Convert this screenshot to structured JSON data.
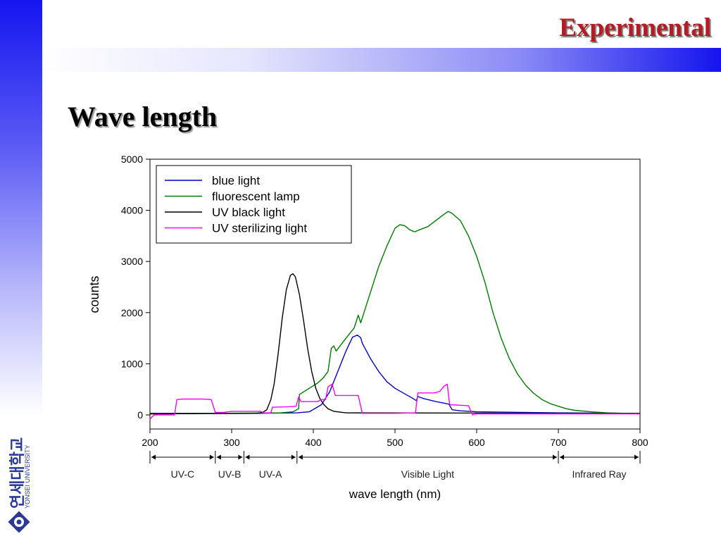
{
  "header": {
    "title": "Experimental"
  },
  "slide": {
    "title": "Wave length"
  },
  "logo": {
    "korean": "연세대학교",
    "english": "YONSEI UNIVERSITY"
  },
  "colors": {
    "accent_red": "#b31c22",
    "brand_blue": "#1414ee"
  },
  "chart_data": {
    "type": "line",
    "xlabel": "wave length (nm)",
    "ylabel": "counts",
    "xlim": [
      200,
      800
    ],
    "ylim": [
      -300,
      5000
    ],
    "xticks": [
      200,
      300,
      400,
      500,
      600,
      700,
      800
    ],
    "yticks": [
      0,
      1000,
      2000,
      3000,
      4000,
      5000
    ],
    "legend_position": "top-left",
    "grid": false,
    "series": [
      {
        "name": "blue light",
        "color": "#0000cc",
        "points": [
          [
            200,
            30
          ],
          [
            330,
            30
          ],
          [
            380,
            40
          ],
          [
            395,
            60
          ],
          [
            410,
            200
          ],
          [
            420,
            450
          ],
          [
            430,
            850
          ],
          [
            440,
            1250
          ],
          [
            448,
            1520
          ],
          [
            454,
            1560
          ],
          [
            458,
            1510
          ],
          [
            460,
            1400
          ],
          [
            470,
            1100
          ],
          [
            480,
            850
          ],
          [
            490,
            650
          ],
          [
            500,
            520
          ],
          [
            510,
            430
          ],
          [
            520,
            340
          ],
          [
            526,
            280
          ],
          [
            528,
            360
          ],
          [
            535,
            320
          ],
          [
            550,
            260
          ],
          [
            560,
            230
          ],
          [
            566,
            210
          ],
          [
            570,
            100
          ],
          [
            580,
            80
          ],
          [
            600,
            60
          ],
          [
            700,
            40
          ],
          [
            800,
            30
          ]
        ]
      },
      {
        "name": "fluorescent lamp",
        "color": "#007a00",
        "points": [
          [
            200,
            20
          ],
          [
            360,
            40
          ],
          [
            375,
            60
          ],
          [
            382,
            120
          ],
          [
            383,
            400
          ],
          [
            386,
            430
          ],
          [
            395,
            520
          ],
          [
            405,
            620
          ],
          [
            412,
            720
          ],
          [
            418,
            850
          ],
          [
            422,
            1300
          ],
          [
            425,
            1350
          ],
          [
            428,
            1250
          ],
          [
            440,
            1500
          ],
          [
            450,
            1700
          ],
          [
            455,
            1950
          ],
          [
            458,
            1800
          ],
          [
            470,
            2400
          ],
          [
            480,
            2900
          ],
          [
            490,
            3300
          ],
          [
            500,
            3650
          ],
          [
            506,
            3720
          ],
          [
            512,
            3700
          ],
          [
            518,
            3620
          ],
          [
            524,
            3580
          ],
          [
            530,
            3620
          ],
          [
            540,
            3680
          ],
          [
            550,
            3800
          ],
          [
            558,
            3900
          ],
          [
            565,
            3980
          ],
          [
            570,
            3940
          ],
          [
            580,
            3800
          ],
          [
            590,
            3500
          ],
          [
            600,
            3100
          ],
          [
            610,
            2600
          ],
          [
            620,
            2000
          ],
          [
            630,
            1500
          ],
          [
            640,
            1100
          ],
          [
            650,
            800
          ],
          [
            660,
            580
          ],
          [
            670,
            420
          ],
          [
            680,
            300
          ],
          [
            690,
            220
          ],
          [
            700,
            170
          ],
          [
            710,
            120
          ],
          [
            720,
            90
          ],
          [
            740,
            60
          ],
          [
            760,
            40
          ],
          [
            800,
            20
          ]
        ]
      },
      {
        "name": "UV black light",
        "color": "#000000",
        "points": [
          [
            200,
            20
          ],
          [
            330,
            30
          ],
          [
            338,
            50
          ],
          [
            343,
            100
          ],
          [
            348,
            300
          ],
          [
            352,
            600
          ],
          [
            357,
            1200
          ],
          [
            362,
            1900
          ],
          [
            367,
            2450
          ],
          [
            372,
            2730
          ],
          [
            375,
            2760
          ],
          [
            378,
            2700
          ],
          [
            383,
            2350
          ],
          [
            388,
            1850
          ],
          [
            393,
            1300
          ],
          [
            398,
            850
          ],
          [
            403,
            520
          ],
          [
            408,
            320
          ],
          [
            413,
            200
          ],
          [
            418,
            120
          ],
          [
            425,
            70
          ],
          [
            440,
            40
          ],
          [
            800,
            30
          ]
        ]
      },
      {
        "name": "UV sterilizing light",
        "color": "#ff00ff",
        "points": [
          [
            200,
            -80
          ],
          [
            205,
            0
          ],
          [
            230,
            0
          ],
          [
            233,
            300
          ],
          [
            240,
            310
          ],
          [
            265,
            310
          ],
          [
            275,
            300
          ],
          [
            280,
            50
          ],
          [
            290,
            50
          ],
          [
            300,
            70
          ],
          [
            335,
            70
          ],
          [
            340,
            40
          ],
          [
            348,
            40
          ],
          [
            350,
            150
          ],
          [
            370,
            160
          ],
          [
            379,
            170
          ],
          [
            382,
            350
          ],
          [
            385,
            260
          ],
          [
            405,
            260
          ],
          [
            410,
            300
          ],
          [
            415,
            300
          ],
          [
            418,
            550
          ],
          [
            423,
            600
          ],
          [
            427,
            380
          ],
          [
            455,
            380
          ],
          [
            460,
            30
          ],
          [
            500,
            30
          ],
          [
            525,
            40
          ],
          [
            528,
            430
          ],
          [
            548,
            430
          ],
          [
            555,
            460
          ],
          [
            560,
            560
          ],
          [
            564,
            600
          ],
          [
            567,
            200
          ],
          [
            590,
            180
          ],
          [
            595,
            0
          ],
          [
            600,
            20
          ],
          [
            800,
            20
          ]
        ]
      }
    ],
    "regions": [
      {
        "label": "UV-C",
        "x": [
          200,
          280
        ]
      },
      {
        "label": "UV-B",
        "x": [
          280,
          315
        ]
      },
      {
        "label": "UV-A",
        "x": [
          315,
          380
        ]
      },
      {
        "label": "Visible Light",
        "x": [
          380,
          700
        ]
      },
      {
        "label": "Infrared Ray",
        "x": [
          700,
          800
        ]
      }
    ]
  }
}
